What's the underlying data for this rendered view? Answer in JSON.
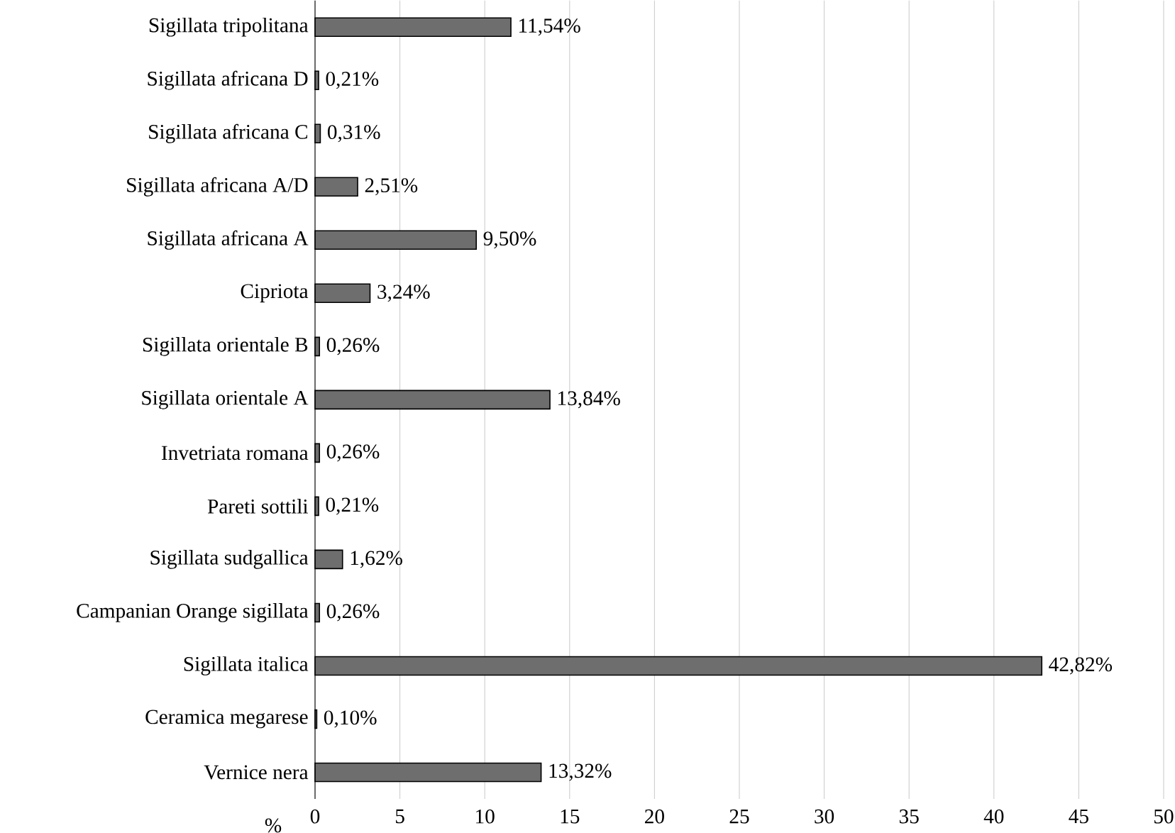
{
  "chart_data": {
    "type": "bar",
    "orientation": "horizontal",
    "xlabel": "%",
    "categories": [
      "Sigillata tripolitana",
      "Sigillata africana D",
      "Sigillata africana C",
      "Sigillata africana A/D",
      "Sigillata africana A",
      "Cipriota",
      "Sigillata orientale B",
      "Sigillata orientale A",
      "Invetriata romana",
      "Pareti sottili",
      "Sigillata sudgallica",
      "Campanian Orange sigillata",
      "Sigillata italica",
      "Ceramica megarese",
      "Vernice nera"
    ],
    "values": [
      11.54,
      0.21,
      0.31,
      2.51,
      9.5,
      3.24,
      0.26,
      13.84,
      0.26,
      0.21,
      1.62,
      0.26,
      42.82,
      0.1,
      13.32
    ],
    "value_labels": [
      "11,54%",
      "0,21%",
      "0,31%",
      "2,51%",
      "9,50%",
      "3,24%",
      "0,26%",
      "13,84%",
      "0,26%",
      "0,21%",
      "1,62%",
      "0,26%",
      "42,82%",
      "0,10%",
      "13,32%"
    ],
    "color": "#6e6e6e",
    "xlim": [
      0,
      50
    ],
    "xticks": [
      0,
      5,
      10,
      15,
      20,
      25,
      30,
      35,
      40,
      45,
      50
    ],
    "grid": "x"
  }
}
